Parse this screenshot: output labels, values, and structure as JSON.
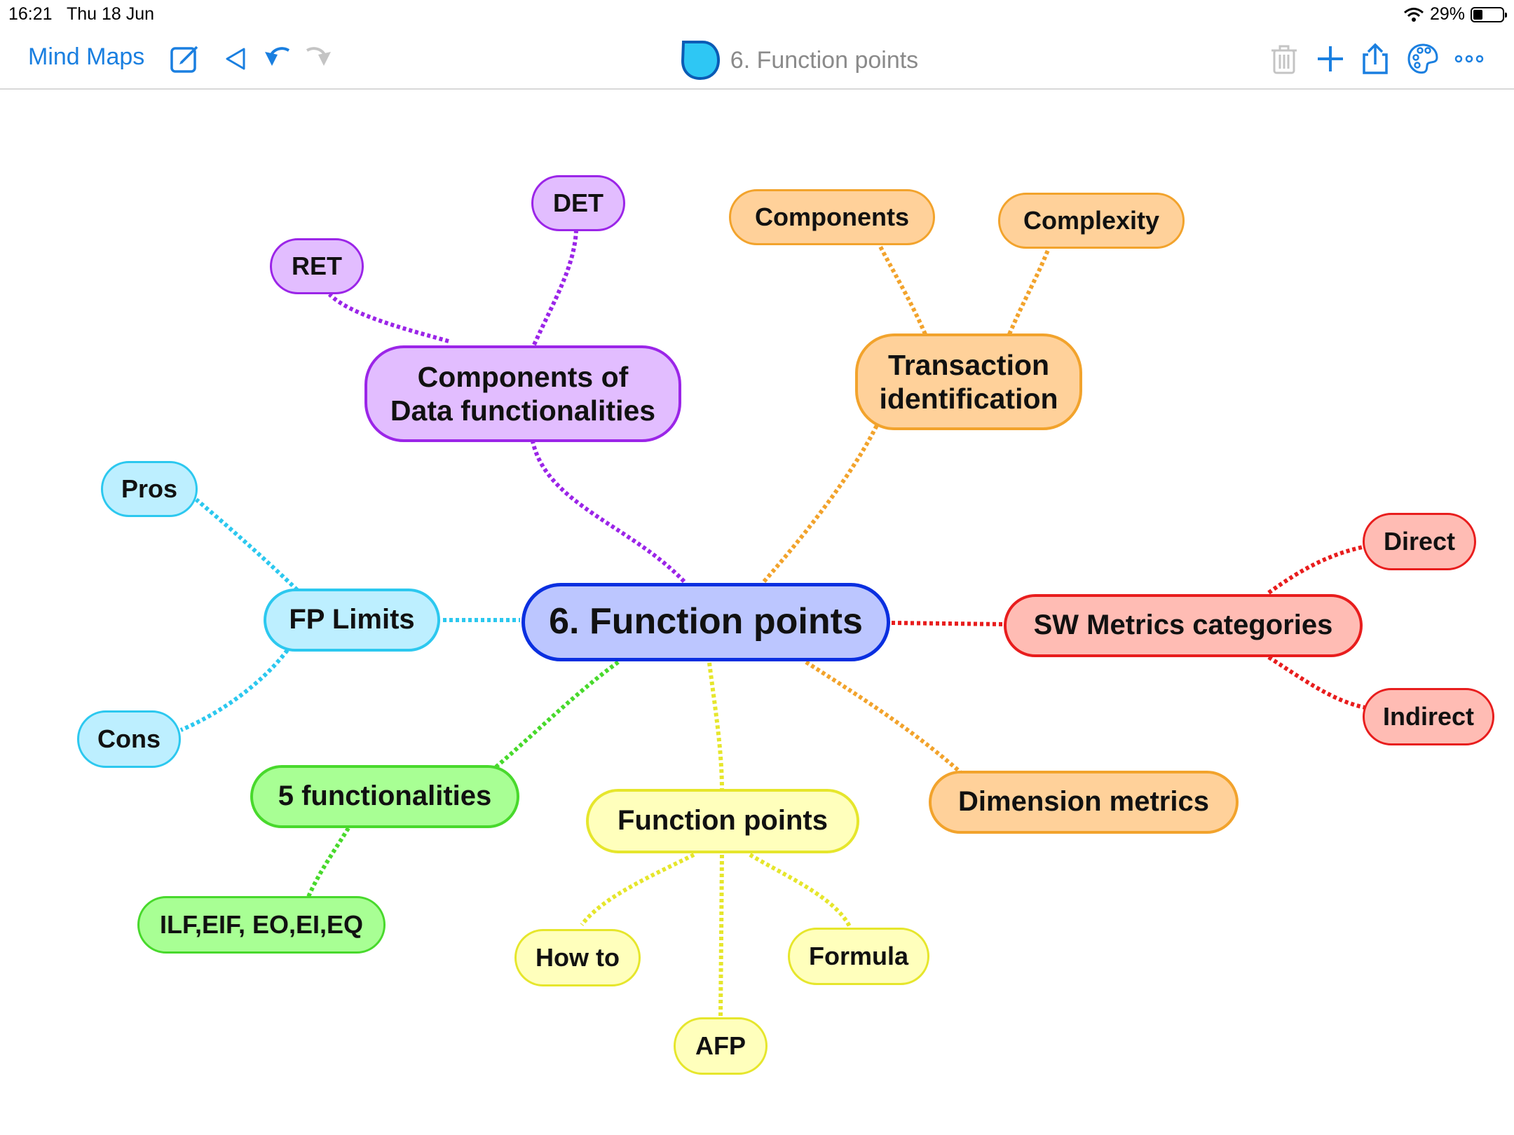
{
  "status_bar": {
    "time": "16:21",
    "date": "Thu 18 Jun",
    "battery": "29%"
  },
  "toolbar": {
    "back_label": "Mind Maps",
    "title": "6. Function points",
    "icons": [
      "compose-icon",
      "back-triangle-icon",
      "undo-icon",
      "redo-icon",
      "trash-icon",
      "plus-icon",
      "share-icon",
      "palette-icon",
      "more-icon"
    ]
  },
  "colors": {
    "accent": "#1a7fe0",
    "central": {
      "fill": "#bcc6ff",
      "stroke": "#0a2fe0"
    },
    "purple": {
      "fill": "#e2bdff",
      "stroke": "#9b25e8"
    },
    "orange": {
      "fill": "#ffd19a",
      "stroke": "#f2a32c"
    },
    "red": {
      "fill": "#ffbcb4",
      "stroke": "#e81d1d"
    },
    "cyan": {
      "fill": "#bdefff",
      "stroke": "#2cc8ef"
    },
    "green": {
      "fill": "#a8ff94",
      "stroke": "#48d92c"
    },
    "yellow": {
      "fill": "#ffffbc",
      "stroke": "#e6e62c"
    }
  },
  "mindmap": {
    "central": "6. Function points",
    "nodes": {
      "components_data": {
        "line1": "Components of",
        "line2": "Data functionalities"
      },
      "ret": "RET",
      "det": "DET",
      "transaction": {
        "line1": "Transaction",
        "line2": "identification"
      },
      "components": "Components",
      "complexity": "Complexity",
      "sw_metrics": "SW Metrics categories",
      "direct": "Direct",
      "indirect": "Indirect",
      "dimension": "Dimension metrics",
      "function_points": "Function points",
      "how_to": "How to",
      "afp": "AFP",
      "formula": "Formula",
      "five_func": "5 functionalities",
      "ilf": "ILF,EIF, EO,EI,EQ",
      "fp_limits": "FP Limits",
      "pros": "Pros",
      "cons": "Cons"
    }
  }
}
